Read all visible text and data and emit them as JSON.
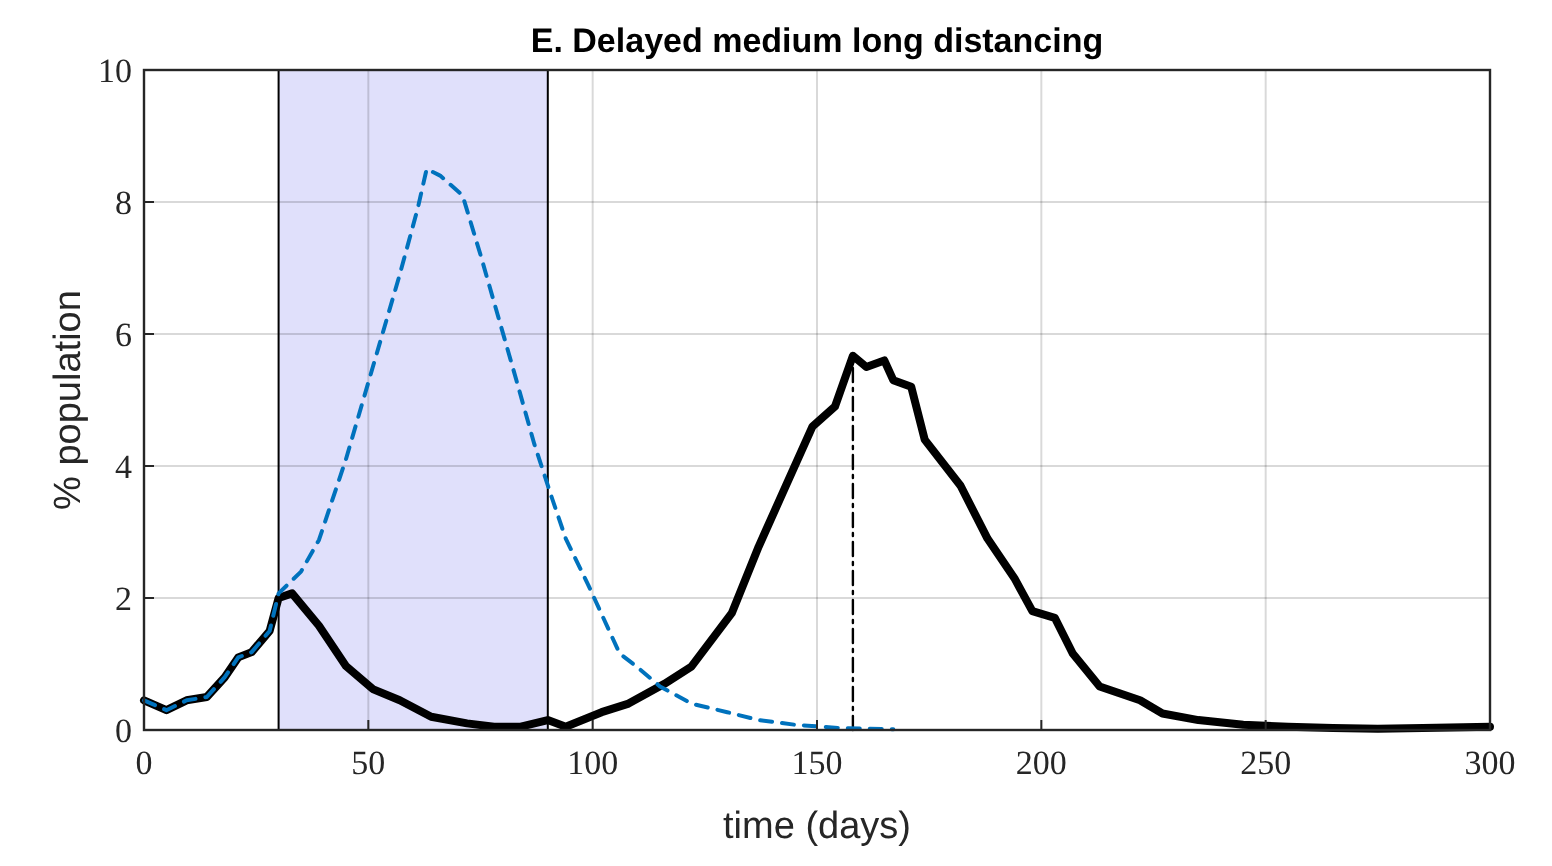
{
  "chart_data": {
    "type": "line",
    "title": "E. Delayed medium long distancing",
    "xlabel": "time (days)",
    "ylabel": "% population",
    "xlim": [
      0,
      300
    ],
    "xticks": [
      0,
      50,
      100,
      150,
      200,
      250,
      300
    ],
    "ylim": [
      0,
      10
    ],
    "yticks": [
      0,
      2,
      4,
      6,
      8,
      10
    ],
    "grid": true,
    "bands": [
      {
        "axis": "x",
        "from": 30,
        "to": 90,
        "color": "#e0e0fb"
      }
    ],
    "series": [
      {
        "color": "#0072bd",
        "line_style": "dashed",
        "x": [
          0,
          5,
          9.5,
          14,
          18,
          21,
          24,
          28,
          30,
          35,
          39,
          45,
          51,
          57,
          61,
          63,
          66,
          71,
          75,
          79,
          83,
          87,
          91,
          94,
          99,
          106,
          110,
          115,
          122,
          130,
          137,
          145,
          155,
          167
        ],
        "values": [
          0.45,
          0.3,
          0.45,
          0.5,
          0.8,
          1.1,
          1.18,
          1.5,
          2.07,
          2.4,
          2.88,
          4.1,
          5.5,
          6.9,
          7.9,
          8.5,
          8.4,
          8.1,
          7.2,
          6.25,
          5.3,
          4.33,
          3.5,
          2.9,
          2.2,
          1.16,
          0.95,
          0.66,
          0.4,
          0.27,
          0.15,
          0.08,
          0.03,
          0.01
        ]
      },
      {
        "color": "#000000",
        "line_style": "solid",
        "x": [
          0,
          5,
          9.5,
          14,
          18,
          21,
          24,
          28,
          30,
          33,
          39,
          45,
          51,
          57,
          64,
          72,
          78,
          84,
          90,
          94,
          102,
          108,
          116,
          122,
          131,
          137,
          143,
          149,
          154,
          158,
          161,
          165,
          167,
          171,
          174,
          182,
          188,
          194,
          198,
          203,
          207,
          213,
          222,
          227,
          235,
          245,
          255,
          265,
          275,
          285,
          300
        ],
        "values": [
          0.45,
          0.3,
          0.45,
          0.5,
          0.8,
          1.1,
          1.18,
          1.5,
          2.0,
          2.07,
          1.58,
          0.97,
          0.62,
          0.45,
          0.2,
          0.1,
          0.05,
          0.05,
          0.15,
          0.05,
          0.27,
          0.4,
          0.7,
          0.96,
          1.77,
          2.78,
          3.69,
          4.6,
          4.9,
          5.67,
          5.5,
          5.6,
          5.3,
          5.2,
          4.4,
          3.7,
          2.9,
          2.3,
          1.8,
          1.7,
          1.16,
          0.66,
          0.45,
          0.25,
          0.15,
          0.08,
          0.05,
          0.03,
          0.02,
          0.03,
          0.05
        ]
      },
      {
        "color": "#000000",
        "line_style": "dashdot",
        "x": [
          158,
          158
        ],
        "values": [
          0,
          5.67
        ]
      }
    ]
  }
}
